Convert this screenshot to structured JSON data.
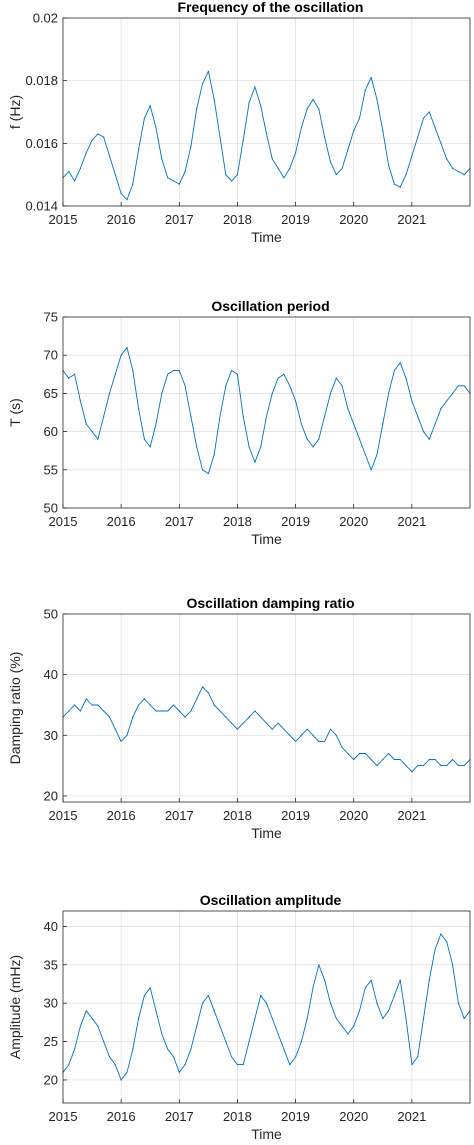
{
  "chart_data": [
    {
      "type": "line",
      "title": "Frequency of the oscillation",
      "xlabel": "Time",
      "ylabel": "f (Hz)",
      "xlim": [
        2015.0,
        2022.0
      ],
      "ylim": [
        0.014,
        0.02
      ],
      "xticks": [
        2015,
        2016,
        2017,
        2018,
        2019,
        2020,
        2021
      ],
      "xtick_labels": [
        "2015",
        "2016",
        "2017",
        "2018",
        "2019",
        "2020",
        "2021"
      ],
      "yticks": [
        0.014,
        0.016,
        0.018,
        0.02
      ],
      "ytick_labels": [
        "0.014",
        "0.016",
        "0.018",
        "0.02"
      ],
      "grid": true,
      "series": [
        {
          "color": "#0072BD",
          "x": [
            2015.0,
            2015.1,
            2015.2,
            2015.3,
            2015.4,
            2015.5,
            2015.6,
            2015.7,
            2015.8,
            2015.9,
            2016.0,
            2016.1,
            2016.2,
            2016.3,
            2016.4,
            2016.5,
            2016.6,
            2016.7,
            2016.8,
            2016.9,
            2017.0,
            2017.1,
            2017.2,
            2017.3,
            2017.4,
            2017.5,
            2017.6,
            2017.7,
            2017.8,
            2017.9,
            2018.0,
            2018.1,
            2018.2,
            2018.3,
            2018.4,
            2018.5,
            2018.6,
            2018.7,
            2018.8,
            2018.9,
            2019.0,
            2019.1,
            2019.2,
            2019.3,
            2019.4,
            2019.5,
            2019.6,
            2019.7,
            2019.8,
            2019.9,
            2020.0,
            2020.1,
            2020.2,
            2020.3,
            2020.4,
            2020.5,
            2020.6,
            2020.7,
            2020.8,
            2020.9,
            2021.0,
            2021.1,
            2021.2,
            2021.3,
            2021.4,
            2021.5,
            2021.6,
            2021.7,
            2021.8,
            2021.9,
            2022.0
          ],
          "y": [
            0.0149,
            0.0151,
            0.0148,
            0.0152,
            0.0157,
            0.0161,
            0.0163,
            0.0162,
            0.0156,
            0.015,
            0.0144,
            0.0142,
            0.0147,
            0.0158,
            0.0168,
            0.0172,
            0.0165,
            0.0155,
            0.0149,
            0.0148,
            0.0147,
            0.0151,
            0.0159,
            0.0171,
            0.0179,
            0.0183,
            0.0174,
            0.0162,
            0.015,
            0.0148,
            0.015,
            0.0161,
            0.0173,
            0.0178,
            0.0172,
            0.0163,
            0.0155,
            0.0152,
            0.0149,
            0.0152,
            0.0157,
            0.0165,
            0.0171,
            0.0174,
            0.0171,
            0.0162,
            0.0154,
            0.015,
            0.0152,
            0.0158,
            0.0164,
            0.0168,
            0.0177,
            0.0181,
            0.0174,
            0.0164,
            0.0153,
            0.0147,
            0.0146,
            0.015,
            0.0156,
            0.0162,
            0.0168,
            0.017,
            0.0165,
            0.016,
            0.0155,
            0.0152,
            0.0151,
            0.015,
            0.0152
          ]
        }
      ]
    },
    {
      "type": "line",
      "title": "Oscillation period",
      "xlabel": "Time",
      "ylabel": "T (s)",
      "xlim": [
        2015.0,
        2022.0
      ],
      "ylim": [
        50,
        75
      ],
      "xticks": [
        2015,
        2016,
        2017,
        2018,
        2019,
        2020,
        2021
      ],
      "xtick_labels": [
        "2015",
        "2016",
        "2017",
        "2018",
        "2019",
        "2020",
        "2021"
      ],
      "yticks": [
        50,
        55,
        60,
        65,
        70,
        75
      ],
      "ytick_labels": [
        "50",
        "55",
        "60",
        "65",
        "70",
        "75"
      ],
      "grid": true,
      "series": [
        {
          "color": "#0072BD",
          "x": [
            2015.0,
            2015.1,
            2015.2,
            2015.3,
            2015.4,
            2015.5,
            2015.6,
            2015.7,
            2015.8,
            2015.9,
            2016.0,
            2016.1,
            2016.2,
            2016.3,
            2016.4,
            2016.5,
            2016.6,
            2016.7,
            2016.8,
            2016.9,
            2017.0,
            2017.1,
            2017.2,
            2017.3,
            2017.4,
            2017.5,
            2017.6,
            2017.7,
            2017.8,
            2017.9,
            2018.0,
            2018.1,
            2018.2,
            2018.3,
            2018.4,
            2018.5,
            2018.6,
            2018.7,
            2018.8,
            2018.9,
            2019.0,
            2019.1,
            2019.2,
            2019.3,
            2019.4,
            2019.5,
            2019.6,
            2019.7,
            2019.8,
            2019.9,
            2020.0,
            2020.1,
            2020.2,
            2020.3,
            2020.4,
            2020.5,
            2020.6,
            2020.7,
            2020.8,
            2020.9,
            2021.0,
            2021.1,
            2021.2,
            2021.3,
            2021.4,
            2021.5,
            2021.6,
            2021.7,
            2021.8,
            2021.9,
            2022.0
          ],
          "y": [
            68,
            67,
            67.5,
            64,
            61,
            60,
            59,
            62,
            65,
            67.5,
            70,
            71,
            68,
            63,
            59,
            58,
            61,
            65,
            67.5,
            68,
            68,
            66,
            62,
            58,
            55,
            54.5,
            57,
            62,
            66,
            68,
            67.5,
            62,
            58,
            56,
            58,
            62,
            65,
            67,
            67.5,
            66,
            64,
            61,
            59,
            58,
            59,
            62,
            65,
            67,
            66,
            63,
            61,
            59,
            57,
            55,
            57,
            61,
            65,
            68,
            69,
            67,
            64,
            62,
            60,
            59,
            61,
            63,
            64,
            65,
            66,
            66,
            65
          ]
        }
      ]
    },
    {
      "type": "line",
      "title": "Oscillation damping ratio",
      "xlabel": "Time",
      "ylabel": "Damping ratio (%)",
      "xlim": [
        2015.0,
        2022.0
      ],
      "ylim": [
        19,
        50
      ],
      "xticks": [
        2015,
        2016,
        2017,
        2018,
        2019,
        2020,
        2021
      ],
      "xtick_labels": [
        "2015",
        "2016",
        "2017",
        "2018",
        "2019",
        "2020",
        "2021"
      ],
      "yticks": [
        20,
        30,
        40,
        50
      ],
      "ytick_labels": [
        "20",
        "30",
        "40",
        "50"
      ],
      "grid": true,
      "series": [
        {
          "color": "#0072BD",
          "x": [
            2015.0,
            2015.1,
            2015.2,
            2015.3,
            2015.4,
            2015.5,
            2015.6,
            2015.7,
            2015.8,
            2015.9,
            2016.0,
            2016.1,
            2016.2,
            2016.3,
            2016.4,
            2016.5,
            2016.6,
            2016.7,
            2016.8,
            2016.9,
            2017.0,
            2017.1,
            2017.2,
            2017.3,
            2017.4,
            2017.5,
            2017.6,
            2017.7,
            2017.8,
            2017.9,
            2018.0,
            2018.1,
            2018.2,
            2018.3,
            2018.4,
            2018.5,
            2018.6,
            2018.7,
            2018.8,
            2018.9,
            2019.0,
            2019.1,
            2019.2,
            2019.3,
            2019.4,
            2019.5,
            2019.6,
            2019.7,
            2019.8,
            2019.9,
            2020.0,
            2020.1,
            2020.2,
            2020.3,
            2020.4,
            2020.5,
            2020.6,
            2020.7,
            2020.8,
            2020.9,
            2021.0,
            2021.1,
            2021.2,
            2021.3,
            2021.4,
            2021.5,
            2021.6,
            2021.7,
            2021.8,
            2021.9,
            2022.0
          ],
          "y": [
            33,
            34,
            35,
            34,
            36,
            35,
            35,
            34,
            33,
            31,
            29,
            30,
            33,
            35,
            36,
            35,
            34,
            34,
            34,
            35,
            34,
            33,
            34,
            36,
            38,
            37,
            35,
            34,
            33,
            32,
            31,
            32,
            33,
            34,
            33,
            32,
            31,
            32,
            31,
            30,
            29,
            30,
            31,
            30,
            29,
            29,
            31,
            30,
            28,
            27,
            26,
            27,
            27,
            26,
            25,
            26,
            27,
            26,
            26,
            25,
            24,
            25,
            25,
            26,
            26,
            25,
            25,
            26,
            25,
            25,
            26
          ]
        }
      ]
    },
    {
      "type": "line",
      "title": "Oscillation amplitude",
      "xlabel": "Time",
      "ylabel": "Amplitude (mHz)",
      "xlim": [
        2015.0,
        2022.0
      ],
      "ylim": [
        17,
        42
      ],
      "xticks": [
        2015,
        2016,
        2017,
        2018,
        2019,
        2020,
        2021
      ],
      "xtick_labels": [
        "2015",
        "2016",
        "2017",
        "2018",
        "2019",
        "2020",
        "2021"
      ],
      "yticks": [
        20,
        25,
        30,
        35,
        40
      ],
      "ytick_labels": [
        "20",
        "25",
        "30",
        "35",
        "40"
      ],
      "grid": true,
      "series": [
        {
          "color": "#0072BD",
          "x": [
            2015.0,
            2015.1,
            2015.2,
            2015.3,
            2015.4,
            2015.5,
            2015.6,
            2015.7,
            2015.8,
            2015.9,
            2016.0,
            2016.1,
            2016.2,
            2016.3,
            2016.4,
            2016.5,
            2016.6,
            2016.7,
            2016.8,
            2016.9,
            2017.0,
            2017.1,
            2017.2,
            2017.3,
            2017.4,
            2017.5,
            2017.6,
            2017.7,
            2017.8,
            2017.9,
            2018.0,
            2018.1,
            2018.2,
            2018.3,
            2018.4,
            2018.5,
            2018.6,
            2018.7,
            2018.8,
            2018.9,
            2019.0,
            2019.1,
            2019.2,
            2019.3,
            2019.4,
            2019.5,
            2019.6,
            2019.7,
            2019.8,
            2019.9,
            2020.0,
            2020.1,
            2020.2,
            2020.3,
            2020.4,
            2020.5,
            2020.6,
            2020.7,
            2020.8,
            2020.9,
            2021.0,
            2021.1,
            2021.2,
            2021.3,
            2021.4,
            2021.5,
            2021.6,
            2021.7,
            2021.8,
            2021.9,
            2022.0
          ],
          "y": [
            21,
            22,
            24,
            27,
            29,
            28,
            27,
            25,
            23,
            22,
            20,
            21,
            24,
            28,
            31,
            32,
            29,
            26,
            24,
            23,
            21,
            22,
            24,
            27,
            30,
            31,
            29,
            27,
            25,
            23,
            22,
            22,
            25,
            28,
            31,
            30,
            28,
            26,
            24,
            22,
            23,
            25,
            28,
            32,
            35,
            33,
            30,
            28,
            27,
            26,
            27,
            29,
            32,
            33,
            30,
            28,
            29,
            31,
            33,
            28,
            22,
            23,
            28,
            33,
            37,
            39,
            38,
            35,
            30,
            28,
            29
          ]
        }
      ]
    }
  ]
}
